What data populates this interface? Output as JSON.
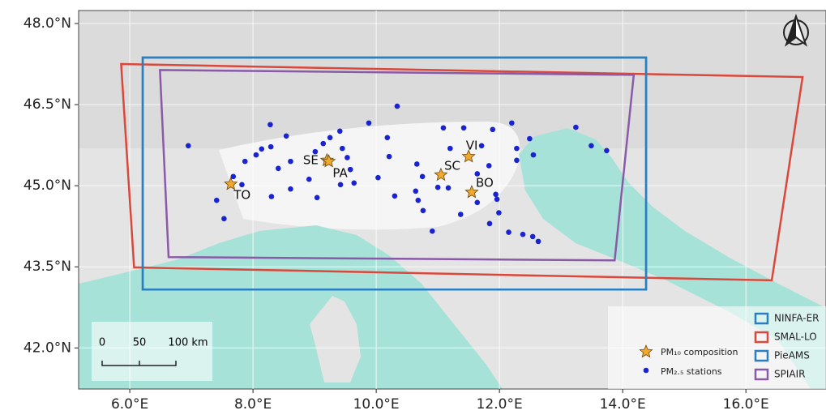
{
  "map": {
    "xlim": [
      5.17,
      17.3
    ],
    "ylim": [
      41.24,
      48.24
    ],
    "xticks": [
      {
        "value": 6,
        "label": "6.0°E"
      },
      {
        "value": 8,
        "label": "8.0°E"
      },
      {
        "value": 10,
        "label": "10.0°E"
      },
      {
        "value": 12,
        "label": "12.0°E"
      },
      {
        "value": 14,
        "label": "14.0°E"
      },
      {
        "value": 16,
        "label": "16.0°E"
      }
    ],
    "yticks": [
      {
        "value": 48,
        "label": "48.0°N"
      },
      {
        "value": 46.5,
        "label": "46.5°N"
      },
      {
        "value": 45,
        "label": "45.0°N"
      },
      {
        "value": 43.5,
        "label": "43.5°N"
      },
      {
        "value": 42,
        "label": "42.0°N"
      }
    ],
    "grid": true,
    "domains": [
      {
        "name": "NINFA-ER",
        "color": "#2a7fc0",
        "lon": [
          6.21,
          14.38,
          14.38,
          6.21
        ],
        "lat": [
          47.37,
          47.37,
          43.08,
          43.08
        ]
      },
      {
        "name": "SMAL-LO",
        "color": "#d9483b",
        "lon": [
          5.86,
          16.92,
          16.42,
          6.07
        ],
        "lat": [
          47.25,
          47.01,
          43.25,
          43.49
        ]
      },
      {
        "name": "PieAMS",
        "color": "#2a7fc0",
        "lon": [
          6.21,
          14.38,
          14.38,
          6.21
        ],
        "lat": [
          47.37,
          47.37,
          43.08,
          43.08
        ]
      },
      {
        "name": "SPIAIR",
        "color": "#8a5aa8",
        "lon": [
          6.49,
          14.18,
          13.87,
          6.63
        ],
        "lat": [
          47.14,
          47.05,
          43.62,
          43.68
        ]
      }
    ],
    "sites": [
      {
        "label": "TO",
        "lon": 7.64,
        "lat": 45.03
      },
      {
        "label": "SE",
        "lon": 9.2,
        "lat": 45.47
      },
      {
        "label": "PA",
        "lon": 9.23,
        "lat": 45.45
      },
      {
        "label": "VI",
        "lon": 11.5,
        "lat": 45.54
      },
      {
        "label": "SC",
        "lon": 11.05,
        "lat": 45.2
      },
      {
        "label": "BO",
        "lon": 11.55,
        "lat": 44.88
      }
    ],
    "site_color": "#f2a72e",
    "station_color": "#1a23d0",
    "stations_lon": [
      6.95,
      7.68,
      7.82,
      7.41,
      7.53,
      7.87,
      8.05,
      8.14,
      8.28,
      8.29,
      8.41,
      8.54,
      8.61,
      8.61,
      8.3,
      8.91,
      9.04,
      9.01,
      9.14,
      9.25,
      9.41,
      9.45,
      9.53,
      9.58,
      9.42,
      9.64,
      9.88,
      10.03,
      10.18,
      10.21,
      10.34,
      10.3,
      10.66,
      10.75,
      10.64,
      10.68,
      10.76,
      10.91,
      11.09,
      11.42,
      11.2,
      11.17,
      11.0,
      11.37,
      11.71,
      11.64,
      11.64,
      11.83,
      11.89,
      11.94,
      11.84,
      11.99,
      12.15,
      12.2,
      12.28,
      12.28,
      12.49,
      12.55,
      12.38,
      12.54,
      12.63,
      13.24,
      13.49,
      13.74,
      11.96
    ],
    "stations_lat": [
      45.74,
      45.17,
      45.02,
      44.73,
      44.39,
      45.45,
      45.57,
      45.68,
      46.13,
      45.72,
      45.32,
      45.92,
      45.45,
      44.94,
      44.8,
      45.12,
      44.78,
      45.63,
      45.78,
      45.89,
      46.01,
      45.69,
      45.52,
      45.3,
      45.02,
      45.05,
      46.16,
      45.15,
      45.89,
      45.54,
      46.47,
      44.81,
      45.4,
      45.17,
      44.9,
      44.73,
      44.54,
      44.16,
      46.07,
      46.07,
      45.69,
      44.96,
      44.97,
      44.47,
      45.74,
      45.22,
      44.69,
      45.37,
      46.04,
      44.84,
      44.3,
      44.5,
      44.14,
      46.16,
      45.69,
      45.47,
      45.87,
      45.57,
      44.1,
      44.06,
      43.97,
      46.08,
      45.74,
      45.65,
      44.75
    ],
    "legend": {
      "sites": "PM₁₀ composition",
      "stations": "PM₂.₅ stations"
    },
    "scale_bar": [
      "0",
      "50",
      "100 km"
    ]
  }
}
